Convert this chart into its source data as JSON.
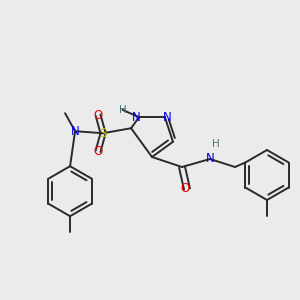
{
  "bg_color": "#ebebeb",
  "bond_color": "#2a2a2a",
  "bond_width": 1.4,
  "atom_colors": {
    "N": "#0000ee",
    "O": "#ee0000",
    "S": "#cccc00",
    "H": "#447777",
    "C": "#2a2a2a"
  },
  "font_size": 8.5,
  "figsize": [
    3.0,
    3.0
  ],
  "dpi": 100
}
